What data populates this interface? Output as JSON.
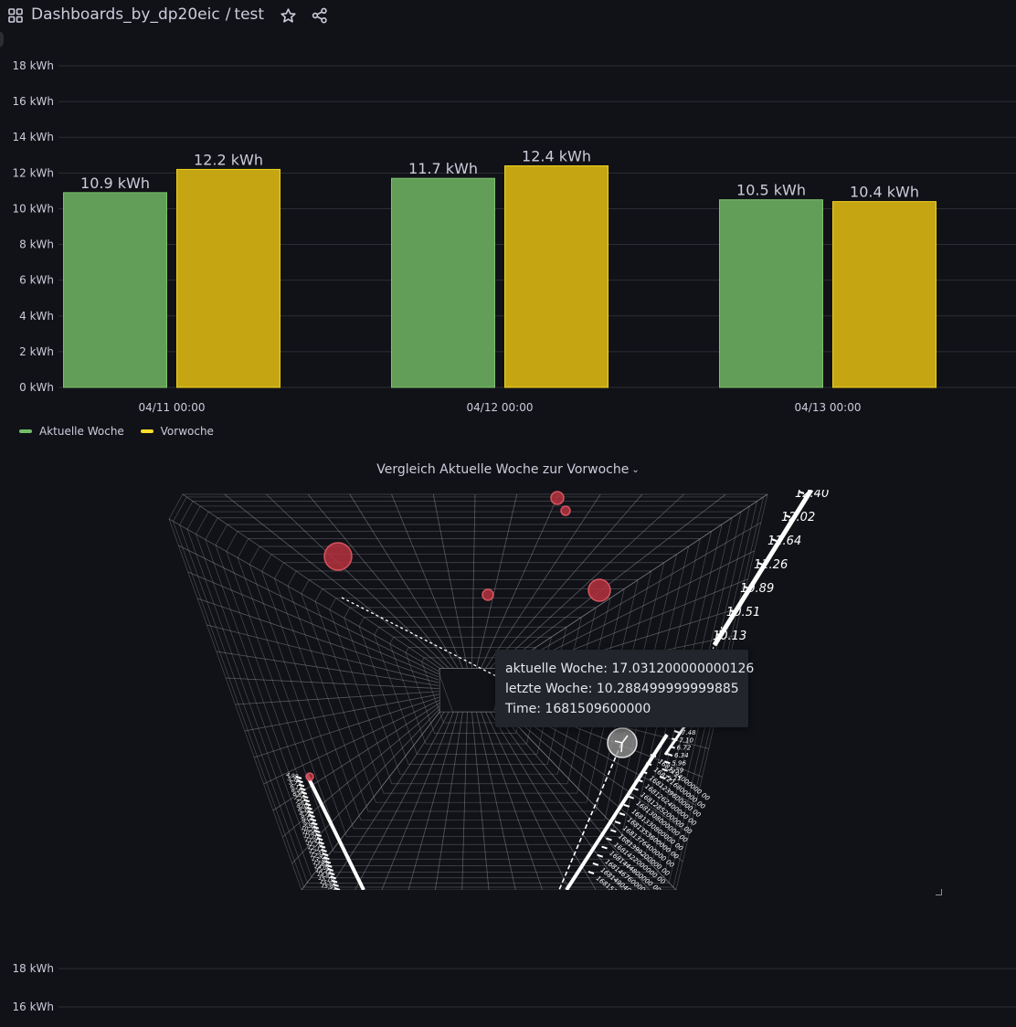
{
  "header": {
    "folder": "Dashboards_by_dp20eic",
    "separator": "/",
    "dashboard": "test"
  },
  "colors": {
    "aktuelle": "#64a555",
    "vorwoche": "#c9a811",
    "bubble": "#b5323e",
    "highlight": "#9a9a9a"
  },
  "chart_data": [
    {
      "type": "bar",
      "categories": [
        "04/11 00:00",
        "04/12 00:00",
        "04/13 00:00"
      ],
      "series": [
        {
          "name": "Aktuelle Woche",
          "values": [
            10.9,
            11.7,
            10.5
          ],
          "labels": [
            "10.9 kWh",
            "11.7 kWh",
            "10.5 kWh"
          ]
        },
        {
          "name": "Vorwoche",
          "values": [
            12.2,
            12.4,
            10.4
          ],
          "labels": [
            "12.2 kWh",
            "12.4 kWh",
            "10.4 kWh"
          ]
        }
      ],
      "y_ticks": [
        0,
        2,
        4,
        6,
        8,
        10,
        12,
        14,
        16,
        18
      ],
      "y_tick_labels": [
        "0 kWh",
        "2 kWh",
        "4 kWh",
        "6 kWh",
        "8 kWh",
        "10 kWh",
        "12 kWh",
        "14 kWh",
        "16 kWh",
        "18 kWh"
      ],
      "ylim": [
        0,
        18
      ],
      "grid": true,
      "legend": "bottom-left"
    },
    {
      "type": "scatter",
      "title": "Vergleich Aktuelle Woche zur Vorwoche",
      "axis_right_ticks": [
        "12.40",
        "12.02",
        "11.64",
        "11.26",
        "10.89",
        "10.51",
        "10.13"
      ],
      "axis_small_ticks": [
        "7.48",
        "7.10",
        "6.72",
        "6.34",
        "5.96",
        "5.59",
        "5.21"
      ],
      "axis_time_ticks": [
        "1681194000000 00",
        "1681216800000 00",
        "1681239600000 00",
        "1681262400000 00",
        "1681285200000 00",
        "1681308000000 00",
        "1681330800000 00",
        "1681353600000 00",
        "1681376400000 00",
        "1681399200000 00",
        "1681422000000 00",
        "1681444800000 00",
        "1681467600000 00",
        "1681490400000 00",
        "1681513200000 00"
      ],
      "axis_left_ticks": [
        "4.98",
        "5.36",
        "5.73",
        "6.11",
        "6.49",
        "6.87",
        "7.25",
        "7.63",
        "8.00",
        "8.38",
        "8.76",
        "9.14",
        "9.52",
        "9.90",
        "10.28",
        "10.65",
        "11.03",
        "11.41",
        "11.79",
        "12.17",
        "12.55",
        "12.92",
        "13.30",
        "13.68",
        "14.06",
        "14.44",
        "14.82",
        "15.19",
        "15.57",
        "15.95"
      ],
      "tooltip": {
        "line1": "aktuelle Woche: 17.031200000000126",
        "line2": "letzte Woche: 10.288499999999885",
        "line3": "Time: 1681509600000"
      }
    }
  ],
  "panel3": {
    "y_tick_labels": [
      "18 kWh",
      "16 kWh"
    ]
  }
}
